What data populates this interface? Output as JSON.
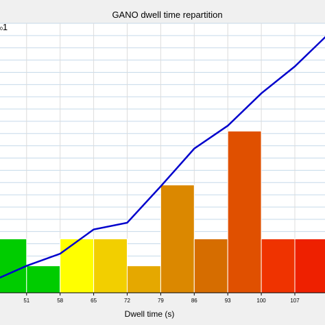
{
  "chart_data": {
    "type": "bar",
    "title": "GANO dwell time repartition",
    "xlabel": "Dwell time (s)",
    "ylabel": "",
    "corner_label": "1",
    "corner_sub": "0",
    "x_ticks": [
      "51",
      "58",
      "65",
      "72",
      "79",
      "86",
      "93",
      "100",
      "107"
    ],
    "ylim": [
      0,
      10
    ],
    "grid": true,
    "bars": [
      {
        "value": 2.0,
        "color": "#00cc00"
      },
      {
        "value": 1.0,
        "color": "#00cc00"
      },
      {
        "value": 2.0,
        "color": "#ffff00"
      },
      {
        "value": 2.0,
        "color": "#f2cf00"
      },
      {
        "value": 1.0,
        "color": "#e5a800"
      },
      {
        "value": 4.0,
        "color": "#db8800"
      },
      {
        "value": 2.0,
        "color": "#d66d00"
      },
      {
        "value": 6.0,
        "color": "#e05000"
      },
      {
        "value": 2.0,
        "color": "#ef3300"
      },
      {
        "value": 2.0,
        "color": "#ee2000"
      }
    ],
    "cumulative_line": {
      "color": "#0000cc",
      "values": [
        0.45,
        1.0,
        1.45,
        2.35,
        2.6,
        3.95,
        5.35,
        6.2,
        7.4,
        8.4,
        9.6
      ]
    }
  }
}
